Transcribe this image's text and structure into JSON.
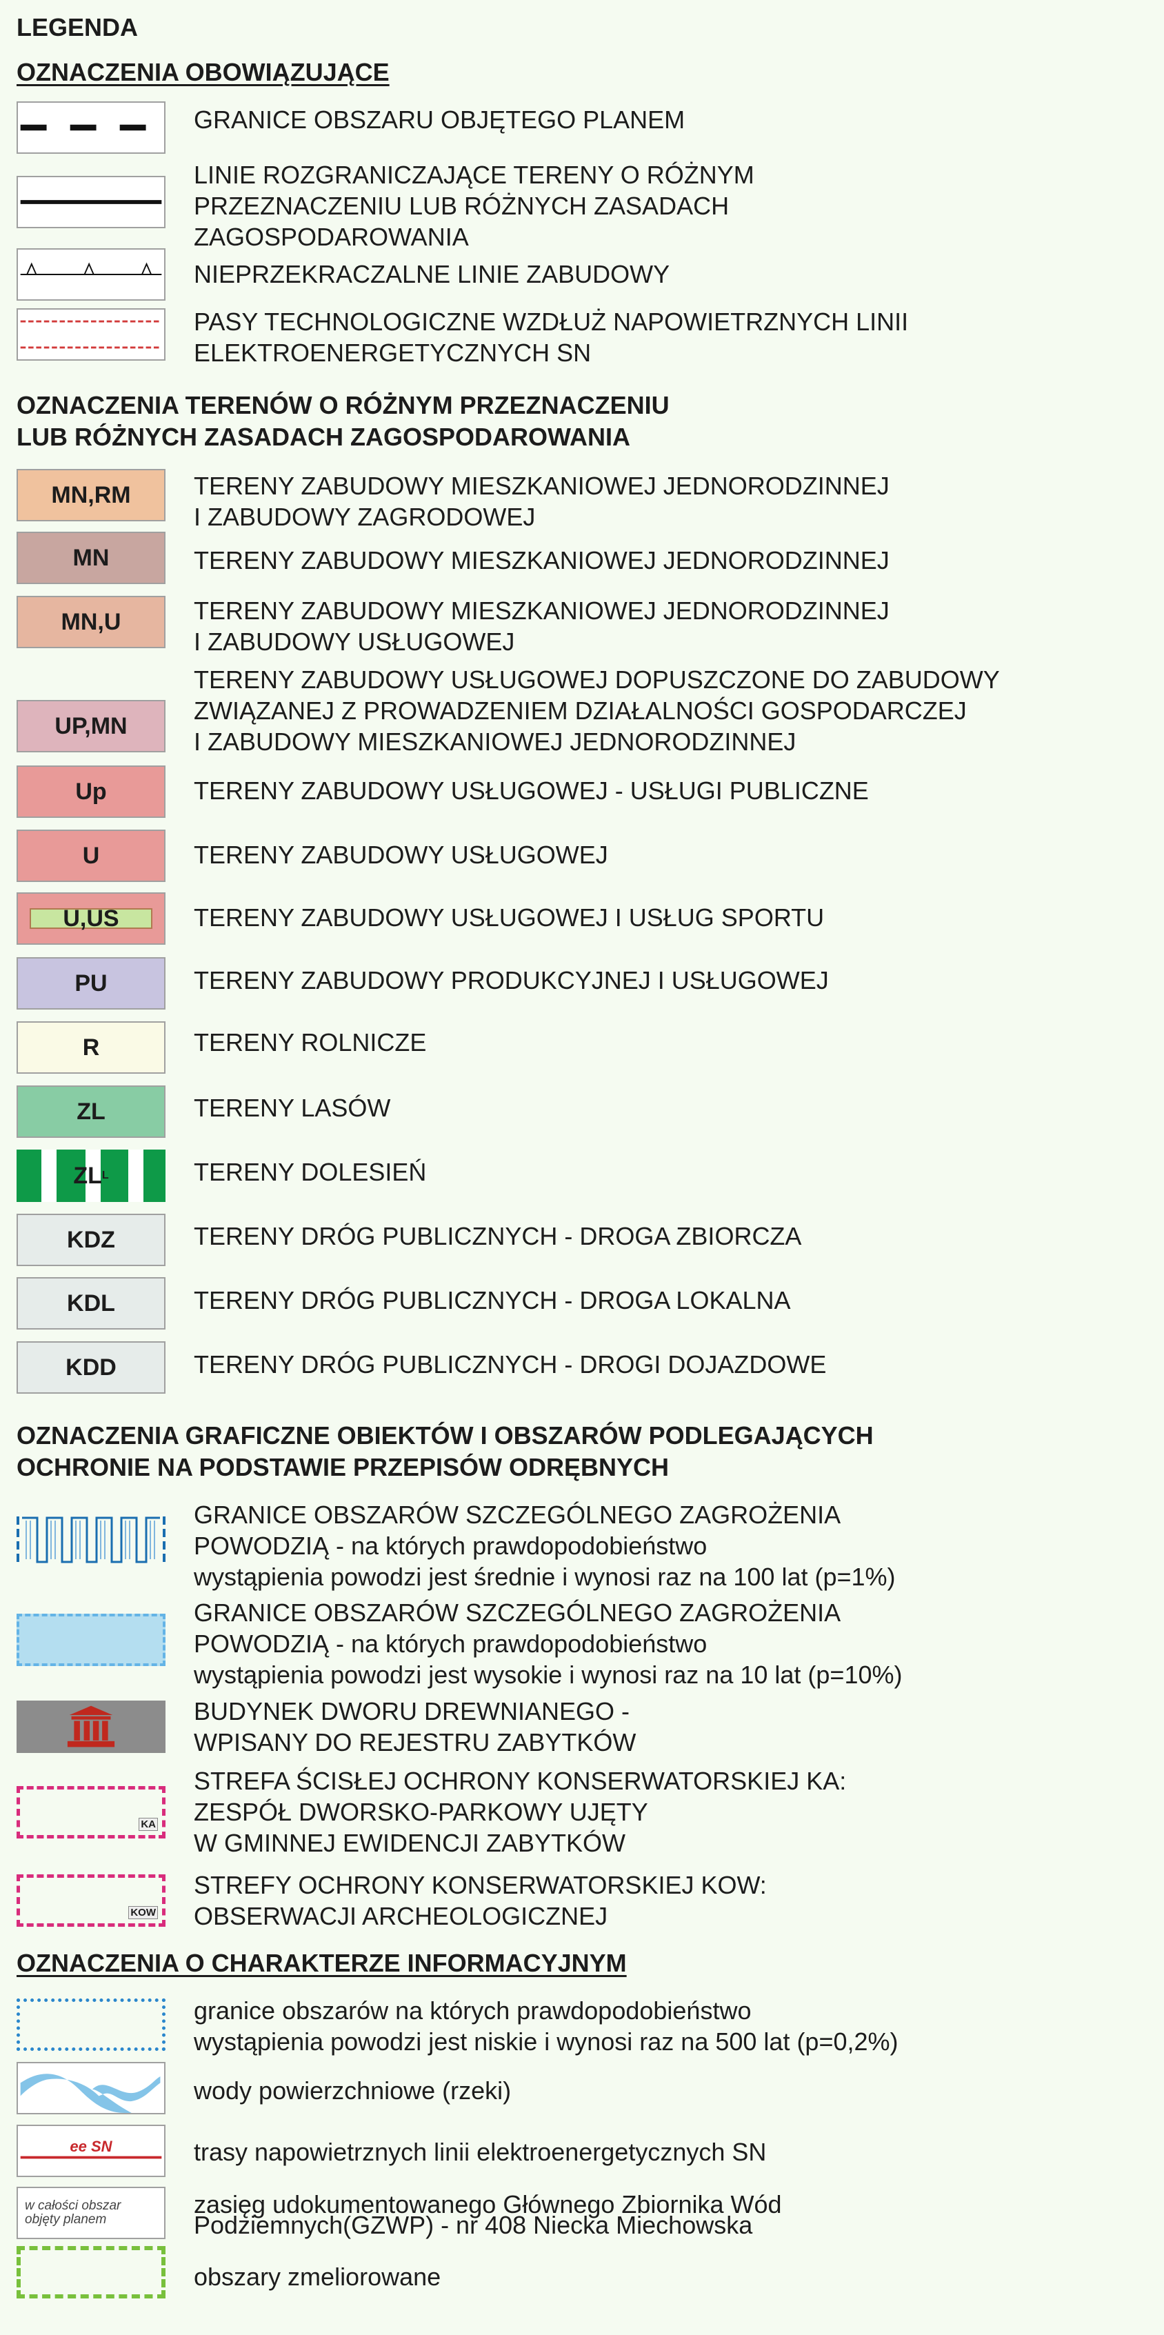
{
  "title": "LEGENDA",
  "s1": {
    "heading": "OZNACZENIA  OBOWIĄZUJĄCE",
    "items": [
      {
        "lines": [
          "GRANICE OBSZARU OBJĘTEGO PLANEM"
        ]
      },
      {
        "lines": [
          "LINIE ROZGRANICZAJĄCE TERENY O RÓŻNYM",
          "PRZEZNACZENIU LUB RÓŻNYCH ZASADACH",
          "ZAGOSPODAROWANIA"
        ]
      },
      {
        "lines": [
          "NIEPRZEKRACZALNE LINIE ZABUDOWY"
        ]
      },
      {
        "lines": [
          "PASY TECHNOLOGICZNE WZDŁUŻ NAPOWIETRZNYCH LINII",
          "ELEKTROENERGETYCZNYCH SN"
        ]
      }
    ]
  },
  "s2": {
    "heading": [
      "OZNACZENIA  TERENÓW O RÓŻNYM PRZEZNACZENIU",
      "LUB RÓŻNYCH ZASADACH ZAGOSPODAROWANIA"
    ],
    "items": [
      {
        "code": "MN,RM",
        "color": "#f0c29e",
        "lines": [
          "TERENY ZABUDOWY MIESZKANIOWEJ JEDNORODZINNEJ",
          "I ZABUDOWY ZAGRODOWEJ"
        ]
      },
      {
        "code": "MN",
        "color": "#c8a6a0",
        "lines": [
          "TERENY ZABUDOWY MIESZKANIOWEJ JEDNORODZINNEJ"
        ]
      },
      {
        "code": "MN,U",
        "color": "#e6b6a0",
        "lines": [
          "TERENY ZABUDOWY MIESZKANIOWEJ JEDNORODZINNEJ",
          "I ZABUDOWY USŁUGOWEJ"
        ]
      },
      {
        "code": "UP,MN",
        "color": "#deb4bc",
        "lines": [
          "TERENY ZABUDOWY USŁUGOWEJ DOPUSZCZONE DO ZABUDOWY",
          "ZWIĄZANEJ Z PROWADZENIEM DZIAŁALNOŚCI GOSPODARCZEJ",
          "I ZABUDOWY MIESZKANIOWEJ JEDNORODZINNEJ"
        ]
      },
      {
        "code": "Up",
        "color": "#e89a98",
        "lines": [
          "TERENY ZABUDOWY USŁUGOWEJ - USŁUGI PUBLICZNE"
        ]
      },
      {
        "code": "U",
        "color": "#e89a98",
        "lines": [
          "TERENY ZABUDOWY USŁUGOWEJ"
        ]
      },
      {
        "code": "U,US",
        "color": "#e89a98",
        "inner": "#c8e6a0",
        "lines": [
          "TERENY ZABUDOWY USŁUGOWEJ I USŁUG SPORTU"
        ]
      },
      {
        "code": "PU",
        "color": "#c8c4e0",
        "lines": [
          "TERENY ZABUDOWY PRODUKCYJNEJ I USŁUGOWEJ"
        ]
      },
      {
        "code": "R",
        "color": "#fafae6",
        "lines": [
          "TERENY ROLNICZE"
        ]
      },
      {
        "code": "ZL",
        "color": "#88cca4",
        "lines": [
          "TERENY LASÓW"
        ]
      },
      {
        "code": "ZL",
        "sub": "L",
        "color": "#0e9a48",
        "lines": [
          "TERENY DOLESIEŃ"
        ]
      },
      {
        "code": "KDZ",
        "color": "#e6ecea",
        "lines": [
          "TERENY DRÓG PUBLICZNYCH - DROGA ZBIORCZA"
        ]
      },
      {
        "code": "KDL",
        "color": "#e6ecea",
        "lines": [
          "TERENY DRÓG PUBLICZNYCH - DROGA LOKALNA"
        ]
      },
      {
        "code": "KDD",
        "color": "#e6ecea",
        "lines": [
          "TERENY DRÓG PUBLICZNYCH - DROGI DOJAZDOWE"
        ]
      }
    ]
  },
  "s3": {
    "heading": [
      "OZNACZENIA GRAFICZNE OBIEKTÓW I OBSZARÓW PODLEGAJĄCYCH",
      "OCHRONIE NA PODSTAWIE PRZEPISÓW ODRĘBNYCH"
    ],
    "items": [
      {
        "lines": [
          "GRANICE OBSZARÓW SZCZEGÓLNEGO ZAGROŻENIA",
          "POWODZIĄ - na których prawdopodobieństwo",
          "wystąpienia powodzi jest średnie i wynosi raz na 100 lat (p=1%)"
        ]
      },
      {
        "lines": [
          "GRANICE OBSZARÓW SZCZEGÓLNEGO ZAGROŻENIA",
          "POWODZIĄ - na których prawdopodobieństwo",
          "wystąpienia powodzi jest wysokie i wynosi raz na 10 lat (p=10%)"
        ]
      },
      {
        "lines": [
          "BUDYNEK DWORU DREWNIANEGO -",
          "WPISANY DO REJESTRU ZABYTKÓW"
        ]
      },
      {
        "tag": "KA",
        "lines": [
          "STREFA ŚCISŁEJ OCHRONY KONSERWATORSKIEJ KA:",
          "ZESPÓŁ DWORSKO-PARKOWY UJĘTY",
          "W GMINNEJ EWIDENCJI ZABYTKÓW"
        ]
      },
      {
        "tag": "KOW",
        "lines": [
          "STREFY OCHRONY KONSERWATORSKIEJ KOW:",
          "OBSERWACJI ARCHEOLOGICZNEJ"
        ]
      }
    ]
  },
  "s4": {
    "heading": "OZNACZENIA O CHARAKTERZE INFORMACYJNYM",
    "items": [
      {
        "lines": [
          "granice obszarów na których prawdopodobieństwo",
          "wystąpienia powodzi jest niskie i wynosi raz na 500 lat (p=0,2%)"
        ]
      },
      {
        "lines": [
          "wody powierzchniowe (rzeki)"
        ]
      },
      {
        "tag": "ee SN",
        "lines": [
          "trasy napowietrznych linii elektroenergetycznych SN"
        ]
      },
      {
        "tag": [
          "w całości obszar",
          "objęty planem"
        ],
        "lines": [
          "zasięg  udokumentowanego Głównego Zbiornika Wód",
          "Podziemnych(GZWP) - nr 408 Niecka Miechowska"
        ]
      },
      {
        "lines": [
          "obszary zmeliorowane"
        ]
      }
    ]
  }
}
